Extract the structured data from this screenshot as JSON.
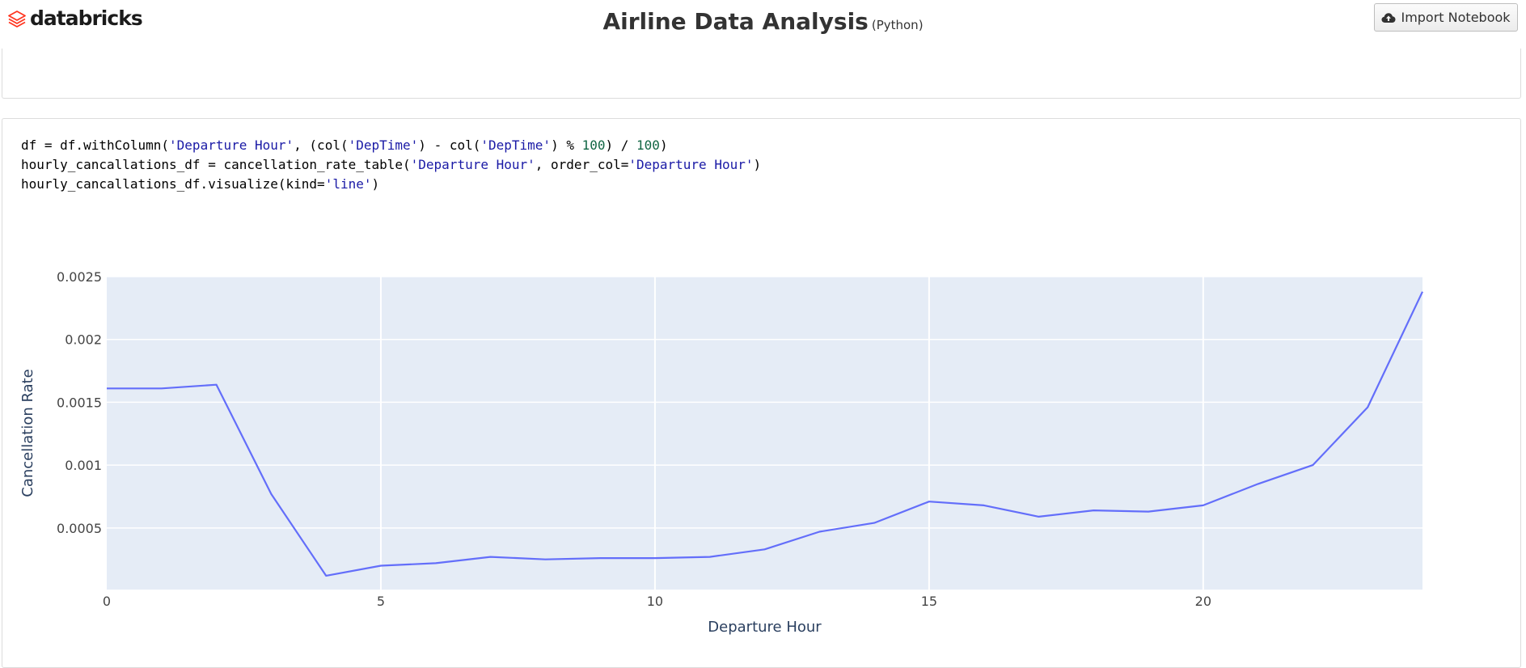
{
  "header": {
    "logo_text": "databricks",
    "logo_icon": "databricks-layers-icon",
    "title": "Airline Data Analysis",
    "language": "(Python)",
    "import_button_label": "Import Notebook",
    "import_button_icon": "cloud-upload-icon"
  },
  "cell": {
    "code_lines": [
      [
        {
          "t": "df = df.withColumn(",
          "c": ""
        },
        {
          "t": "'Departure Hour'",
          "c": "s"
        },
        {
          "t": ", (col(",
          "c": ""
        },
        {
          "t": "'DepTime'",
          "c": "s"
        },
        {
          "t": ") - col(",
          "c": ""
        },
        {
          "t": "'DepTime'",
          "c": "s"
        },
        {
          "t": ") % ",
          "c": ""
        },
        {
          "t": "100",
          "c": "n"
        },
        {
          "t": ") / ",
          "c": ""
        },
        {
          "t": "100",
          "c": "n"
        },
        {
          "t": ")",
          "c": ""
        }
      ],
      [
        {
          "t": "hourly_cancallations_df = cancellation_rate_table(",
          "c": ""
        },
        {
          "t": "'Departure Hour'",
          "c": "s"
        },
        {
          "t": ", order_col=",
          "c": ""
        },
        {
          "t": "'Departure Hour'",
          "c": "s"
        },
        {
          "t": ")",
          "c": ""
        }
      ],
      [
        {
          "t": "hourly_cancallations_df.visualize(kind=",
          "c": ""
        },
        {
          "t": "'line'",
          "c": "s"
        },
        {
          "t": ")",
          "c": ""
        }
      ]
    ]
  },
  "chart_data": {
    "type": "line",
    "title": "",
    "xlabel": "Departure Hour",
    "ylabel": "Cancellation Rate",
    "xlim": [
      0,
      24
    ],
    "ylim": [
      1e-05,
      0.0025
    ],
    "x_ticks": [
      0,
      5,
      10,
      15,
      20
    ],
    "x_tick_labels": [
      "0",
      "5",
      "10",
      "15",
      "20"
    ],
    "y_ticks": [
      0.0005,
      0.001,
      0.0015,
      0.002,
      0.0025
    ],
    "y_tick_labels": [
      "0.0005",
      "0.001",
      "0.0015",
      "0.002",
      "0.0025"
    ],
    "grid": true,
    "legend": "none",
    "line_color": "#636efa",
    "plot_bg": "#e5ecf6",
    "series": [
      {
        "x": [
          0,
          1,
          2,
          3,
          4,
          5,
          6,
          7,
          8,
          9,
          10,
          11,
          12,
          13,
          14,
          15,
          16,
          17,
          18,
          19,
          20,
          21,
          22,
          23,
          24
        ],
        "values": [
          0.00161,
          0.00161,
          0.00164,
          0.00077,
          0.00012,
          0.0002,
          0.00022,
          0.00027,
          0.00025,
          0.00026,
          0.00026,
          0.00027,
          0.00033,
          0.00047,
          0.00054,
          0.00071,
          0.00068,
          0.00059,
          0.00064,
          0.00063,
          0.00068,
          0.00085,
          0.001,
          0.00146,
          0.00238
        ]
      }
    ]
  }
}
